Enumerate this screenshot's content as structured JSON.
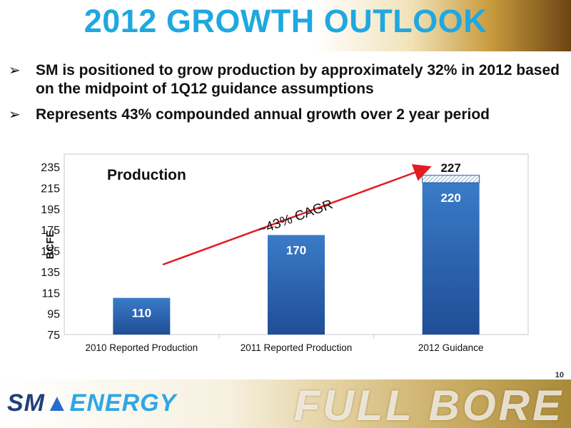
{
  "slide": {
    "title": "2012 GROWTH OUTLOOK",
    "page_number": "10",
    "bullets": [
      "SM is positioned to grow production by approximately 32% in 2012 based on the midpoint of 1Q12 guidance assumptions",
      "Represents 43% compounded annual growth over 2 year period"
    ],
    "bullet_glyph": "➢"
  },
  "chart_data": {
    "type": "bar",
    "title": "Production",
    "ylabel": "BCFE",
    "xlabel": "",
    "ylim": [
      75,
      235
    ],
    "yticks": [
      75,
      95,
      115,
      135,
      155,
      175,
      195,
      215,
      235
    ],
    "categories": [
      "2010 Reported Production",
      "2011 Reported Production",
      "2012 Guidance"
    ],
    "values": [
      110,
      170,
      220
    ],
    "value_labels": [
      "110",
      "170",
      "220"
    ],
    "stacked_extra": {
      "category_index": 2,
      "top_value": 227,
      "label": "227"
    },
    "annotation": {
      "text": "~43% CAGR"
    },
    "grid": false,
    "colors": {
      "bar_top": "#3a7bc8",
      "bar_bottom": "#1f4e96",
      "arrow": "#e31b23",
      "hatch": "#9bb6d8"
    }
  },
  "footer": {
    "logo_left": "SM",
    "logo_right": "ENERGY",
    "tagline": "FULL BORE"
  }
}
